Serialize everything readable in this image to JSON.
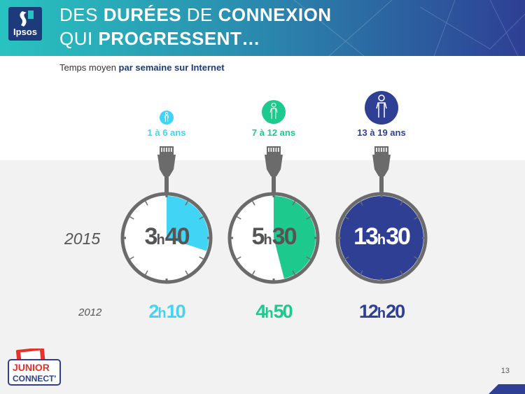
{
  "header": {
    "line1_pre": "DES ",
    "line1_b1": "DURÉES",
    "line1_mid": " DE ",
    "line1_b2": "CONNEXION",
    "line2_pre": "QUI ",
    "line2_b": "PROGRESSENT…"
  },
  "logo": {
    "text": "Ipsos"
  },
  "subtitle": {
    "pre": "Temps moyen ",
    "bold": "par semaine sur Internet"
  },
  "years": {
    "current": "2015",
    "previous": "2012"
  },
  "groups": [
    {
      "age": "1 à 6 ans",
      "color": "#41d4f5",
      "value_h": "3",
      "value_m": "40",
      "prev_h": "2",
      "prev_m": "10",
      "fraction": 0.3
    },
    {
      "age": "7 à 12 ans",
      "color": "#1ec98e",
      "value_h": "5",
      "value_m": "30",
      "prev_h": "4",
      "prev_m": "50",
      "fraction": 0.46
    },
    {
      "age": "13 à 19 ans",
      "color": "#2e3f94",
      "value_h": "13",
      "value_m": "30",
      "prev_h": "12",
      "prev_m": "20",
      "fraction": 1.0
    }
  ],
  "hour_separator": "h",
  "footer": {
    "page_number": "13",
    "brand_line1": "JUNIOR",
    "brand_line2": "CONNECT'"
  },
  "colors": {
    "header_start": "#28c3c0",
    "header_end": "#2e3f94",
    "dark_text": "#555555"
  }
}
